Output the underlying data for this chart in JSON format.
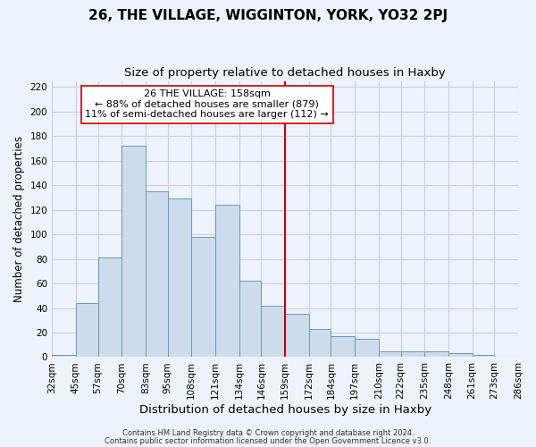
{
  "title": "26, THE VILLAGE, WIGGINTON, YORK, YO32 2PJ",
  "subtitle": "Size of property relative to detached houses in Haxby",
  "xlabel": "Distribution of detached houses by size in Haxby",
  "ylabel": "Number of detached properties",
  "bin_labels": [
    "32sqm",
    "45sqm",
    "57sqm",
    "70sqm",
    "83sqm",
    "95sqm",
    "108sqm",
    "121sqm",
    "134sqm",
    "146sqm",
    "159sqm",
    "172sqm",
    "184sqm",
    "197sqm",
    "210sqm",
    "222sqm",
    "235sqm",
    "248sqm",
    "261sqm",
    "273sqm",
    "286sqm"
  ],
  "bar_heights": [
    2,
    44,
    81,
    172,
    135,
    129,
    98,
    124,
    62,
    42,
    35,
    23,
    17,
    15,
    5,
    5,
    5,
    3,
    2,
    0
  ],
  "bin_edges": [
    32,
    45,
    57,
    70,
    83,
    95,
    108,
    121,
    134,
    146,
    159,
    172,
    184,
    197,
    210,
    222,
    235,
    248,
    261,
    273,
    286
  ],
  "bar_color": "#ccdcec",
  "bar_edge_color": "#6699bb",
  "vline_x": 159,
  "vline_color": "#cc0000",
  "annotation_title": "26 THE VILLAGE: 158sqm",
  "annotation_line1": "← 88% of detached houses are smaller (879)",
  "annotation_line2": "11% of semi-detached houses are larger (112) →",
  "annotation_box_facecolor": "#ffffff",
  "annotation_box_edgecolor": "#cc0000",
  "ylim": [
    0,
    225
  ],
  "yticks": [
    0,
    20,
    40,
    60,
    80,
    100,
    120,
    140,
    160,
    180,
    200,
    220
  ],
  "background_color": "#eef2fa",
  "grid_color": "#ccccdd",
  "footer1": "Contains HM Land Registry data © Crown copyright and database right 2024.",
  "footer2": "Contains public sector information licensed under the Open Government Licence v3.0.",
  "title_fontsize": 11,
  "subtitle_fontsize": 9.5,
  "xlabel_fontsize": 9.5,
  "ylabel_fontsize": 8.5,
  "tick_fontsize": 7.5,
  "annot_fontsize": 8,
  "footer_fontsize": 6
}
